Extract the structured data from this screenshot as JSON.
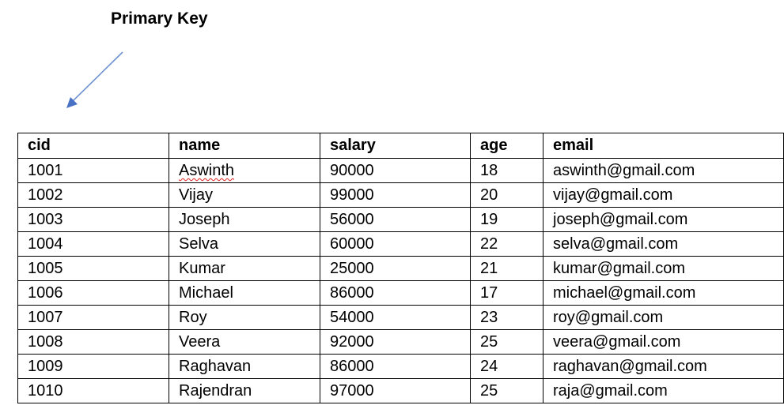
{
  "annotation": {
    "label": "Primary Key",
    "arrow_color": "#6f93cf"
  },
  "table": {
    "headers": [
      "cid",
      "name",
      "salary",
      "age",
      "email"
    ],
    "rows": [
      [
        "1001",
        "Aswinth",
        "90000",
        "18",
        "aswinth@gmail.com"
      ],
      [
        "1002",
        "Vijay",
        "99000",
        "20",
        "vijay@gmail.com"
      ],
      [
        "1003",
        "Joseph",
        "56000",
        "19",
        "joseph@gmail.com"
      ],
      [
        "1004",
        "Selva",
        "60000",
        "22",
        "selva@gmail.com"
      ],
      [
        "1005",
        "Kumar",
        "25000",
        "21",
        "kumar@gmail.com"
      ],
      [
        "1006",
        "Michael",
        "86000",
        "17",
        "michael@gmail.com"
      ],
      [
        "1007",
        "Roy",
        "54000",
        "23",
        "roy@gmail.com"
      ],
      [
        "1008",
        "Veera",
        "92000",
        "25",
        "veera@gmail.com"
      ],
      [
        "1009",
        "Raghavan",
        "86000",
        "24",
        "raghavan@gmail.com"
      ],
      [
        "1010",
        "Rajendran",
        "97000",
        "25",
        "raja@gmail.com"
      ]
    ]
  }
}
